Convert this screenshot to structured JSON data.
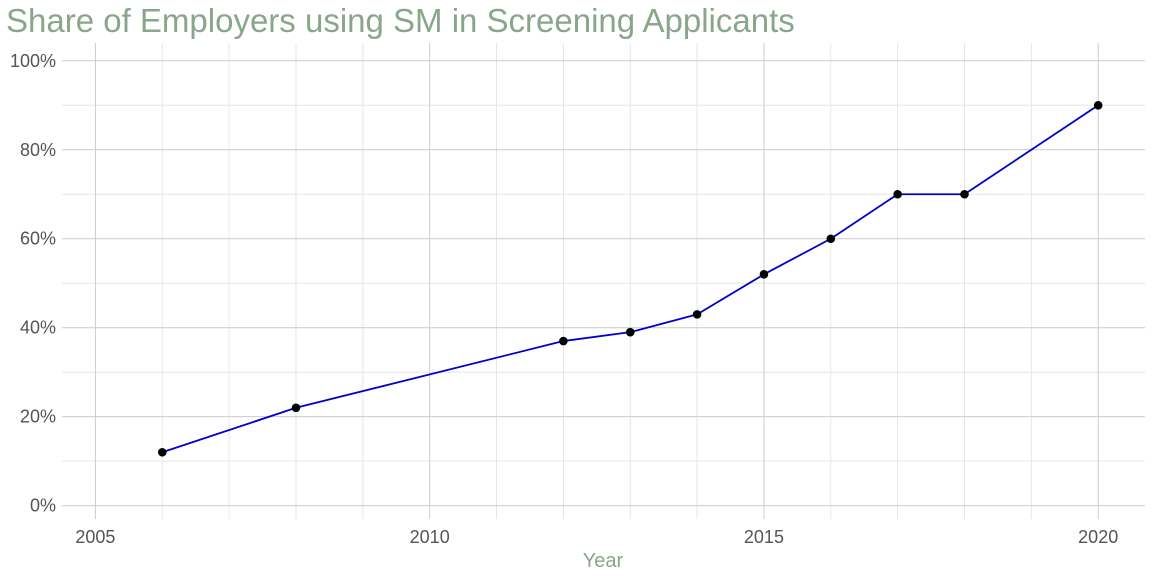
{
  "chart_data": {
    "type": "line",
    "title": "Share of Employers using SM in Screening Applicants",
    "xlabel": "Year",
    "ylabel": "",
    "x": [
      2006,
      2008,
      2012,
      2013,
      2014,
      2015,
      2016,
      2017,
      2018,
      2020
    ],
    "series": [
      {
        "values": [
          12,
          22,
          37,
          39,
          43,
          52,
          60,
          70,
          70,
          90
        ]
      }
    ],
    "xlim": [
      2004.5,
      2020.7
    ],
    "ylim": [
      -3,
      104
    ],
    "x_ticks": [
      2005,
      2010,
      2015,
      2020
    ],
    "x_tick_labels": [
      "2005",
      "2010",
      "2015",
      "2020"
    ],
    "y_ticks": [
      0,
      20,
      40,
      60,
      80,
      100
    ],
    "y_tick_labels": [
      "0%",
      "20%",
      "40%",
      "60%",
      "80%",
      "100%"
    ],
    "grid": true,
    "legend": "none",
    "colors": {
      "title": "#8aa68a",
      "axis_title": "#8aa68a",
      "line": "#0000cc",
      "point": "#000000"
    }
  }
}
